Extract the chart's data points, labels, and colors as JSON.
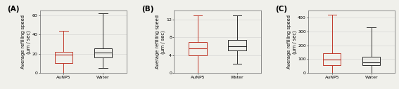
{
  "panels": [
    {
      "label": "A",
      "ylabel": "Average refilling speed\n(μm / sec)",
      "ylim": [
        0,
        65
      ],
      "yticks": [
        0,
        20,
        40,
        60
      ],
      "xticklabels": [
        "AuNP5",
        "Water"
      ],
      "AuNP5": {
        "whislo": 0,
        "q1": 10,
        "med": 19,
        "q3": 22,
        "whishi": 44,
        "color": "#c0392b"
      },
      "Water": {
        "whislo": 5,
        "q1": 16,
        "med": 21,
        "q3": 26,
        "whishi": 62,
        "color": "#2c2c2c"
      }
    },
    {
      "label": "B",
      "ylabel": "Average refilling speed\n(μm / sec)",
      "ylim": [
        0,
        14
      ],
      "yticks": [
        0,
        4,
        8,
        12
      ],
      "xticklabels": [
        "AuNP5",
        "Water"
      ],
      "AuNP5": {
        "whislo": 0,
        "q1": 4,
        "med": 5.5,
        "q3": 7,
        "whishi": 13,
        "color": "#c0392b"
      },
      "Water": {
        "whislo": 2,
        "q1": 5,
        "med": 6,
        "q3": 7.5,
        "whishi": 13,
        "color": "#2c2c2c"
      }
    },
    {
      "label": "C",
      "ylabel": "Average refilling speed\n(μm / sec)",
      "ylim": [
        0,
        450
      ],
      "yticks": [
        0,
        100,
        200,
        300,
        400
      ],
      "xticklabels": [
        "AuNP5",
        "Water"
      ],
      "AuNP5": {
        "whislo": 0,
        "q1": 55,
        "med": 95,
        "q3": 140,
        "whishi": 420,
        "color": "#c0392b"
      },
      "Water": {
        "whislo": 0,
        "q1": 55,
        "med": 75,
        "q3": 115,
        "whishi": 330,
        "color": "#2c2c2c"
      }
    }
  ],
  "background_color": "#f0f0eb",
  "grid_color": "#d0d0d0",
  "label_fontsize": 4.8,
  "tick_fontsize": 4.5,
  "panel_label_fontsize": 7.5
}
